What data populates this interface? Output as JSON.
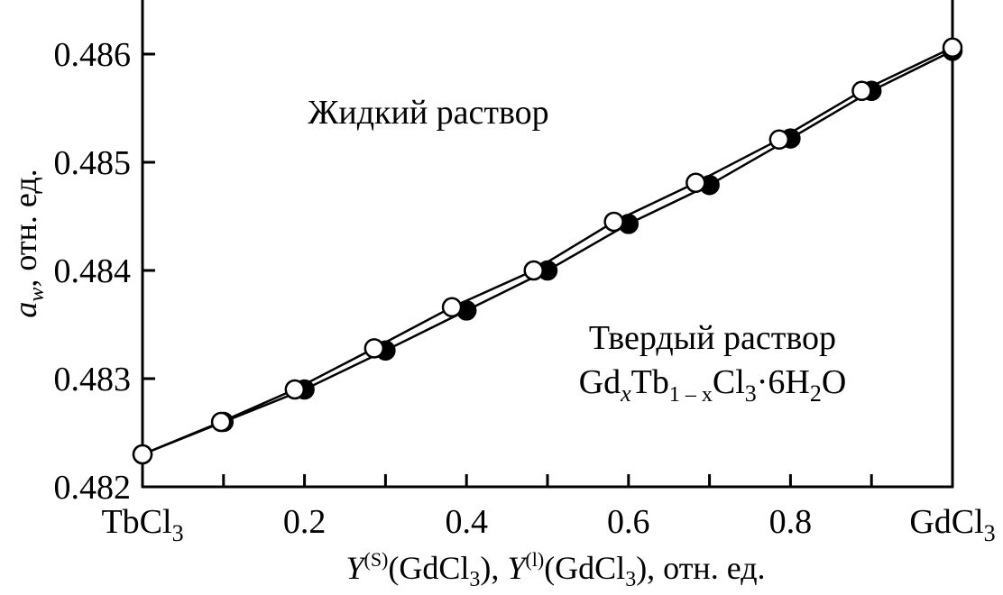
{
  "chart_data": {
    "type": "line",
    "x_axis": {
      "label_parts": {
        "y": "Y",
        "sup_s": "(S)",
        "open1": "(GdCl",
        "sub1": "3",
        "mid": "), ",
        "y2": "Y",
        "sup_l": "(l)",
        "open2": "(GdCl",
        "sub2": "3",
        "tail": "), отн. ед."
      },
      "range": [
        0,
        1
      ],
      "ticks": [
        0,
        0.1,
        0.2,
        0.3,
        0.4,
        0.5,
        0.6,
        0.7,
        0.8,
        0.9,
        1.0
      ],
      "tick_labels": [
        {
          "x": 0.2,
          "text": "0.2"
        },
        {
          "x": 0.4,
          "text": "0.4"
        },
        {
          "x": 0.6,
          "text": "0.6"
        },
        {
          "x": 0.8,
          "text": "0.8"
        }
      ],
      "end_labels": {
        "left_main": "TbCl",
        "left_sub": "3",
        "right_main": "GdCl",
        "right_sub": "3"
      }
    },
    "y_axis": {
      "label_main": "a",
      "label_sub": "w",
      "label_rest": ", отн. ед.",
      "range": [
        0.482,
        0.4865
      ],
      "ticks": [
        0.482,
        0.483,
        0.484,
        0.485,
        0.486
      ],
      "tick_labels": [
        "0.482",
        "0.483",
        "0.484",
        "0.485",
        "0.486"
      ]
    },
    "series": [
      {
        "marker": "filled-circle",
        "color": "#000000",
        "x": [
          0.0,
          0.1,
          0.2,
          0.3,
          0.4,
          0.5,
          0.6,
          0.7,
          0.8,
          0.9,
          1.0
        ],
        "y": [
          0.4823,
          0.4826,
          0.4829,
          0.48326,
          0.48363,
          0.484,
          0.48443,
          0.48479,
          0.48522,
          0.48566,
          0.48603
        ]
      },
      {
        "marker": "open-circle",
        "color": "#000000",
        "x": [
          0.0,
          0.097,
          0.188,
          0.286,
          0.382,
          0.483,
          0.582,
          0.683,
          0.786,
          0.888,
          1.0
        ],
        "y": [
          0.4823,
          0.4826,
          0.4829,
          0.48328,
          0.48366,
          0.484,
          0.48445,
          0.48481,
          0.48521,
          0.48566,
          0.48606
        ]
      }
    ],
    "annotations": {
      "liquid": "Жидкий раствор",
      "solid_line1": "Твердый раствор",
      "solid_line2_parts": {
        "gd": "Gd",
        "x": "x",
        "tb": "Tb",
        "sub_1mx": "1 – x",
        "cl": "Cl",
        "sub3": "3",
        "mid": "·6H",
        "sub2": "2",
        "o": "O"
      }
    }
  }
}
